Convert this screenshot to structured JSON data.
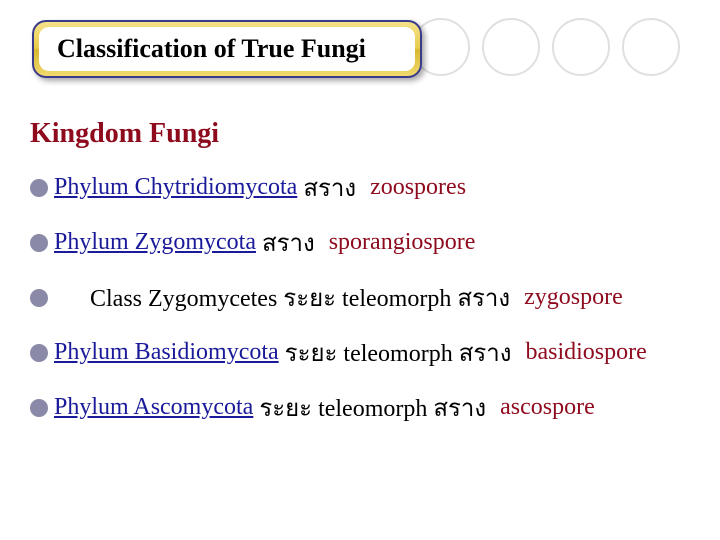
{
  "title": "Classification of True Fungi",
  "kingdom": "Kingdom Fungi",
  "lines": [
    {
      "phylum": "Phylum Chytridiomycota",
      "thai": "สราง",
      "spore": "zoospores"
    },
    {
      "phylum": "Phylum Zygomycota",
      "thai": "สราง",
      "spore": "sporangiospore"
    },
    {
      "class_text": "Class Zygomycetes ระยะ teleomorph สราง",
      "spore": "zygospore"
    },
    {
      "phylum": "Phylum Basidiomycota",
      "thai": "ระยะ teleomorph สราง",
      "spore": "basidiospore"
    },
    {
      "phylum": "Phylum Ascomycota",
      "thai": "ระยะ teleomorph สราง",
      "spore": "ascospore"
    }
  ],
  "colors": {
    "title_border": "#3a3a8a",
    "kingdom_color": "#8e0b1e",
    "phylum_color": "#1a1a9a",
    "spore_color": "#8e0b1e",
    "bullet_color": "#8a8aa8",
    "deco_circle_border": "#e0e0e0"
  }
}
